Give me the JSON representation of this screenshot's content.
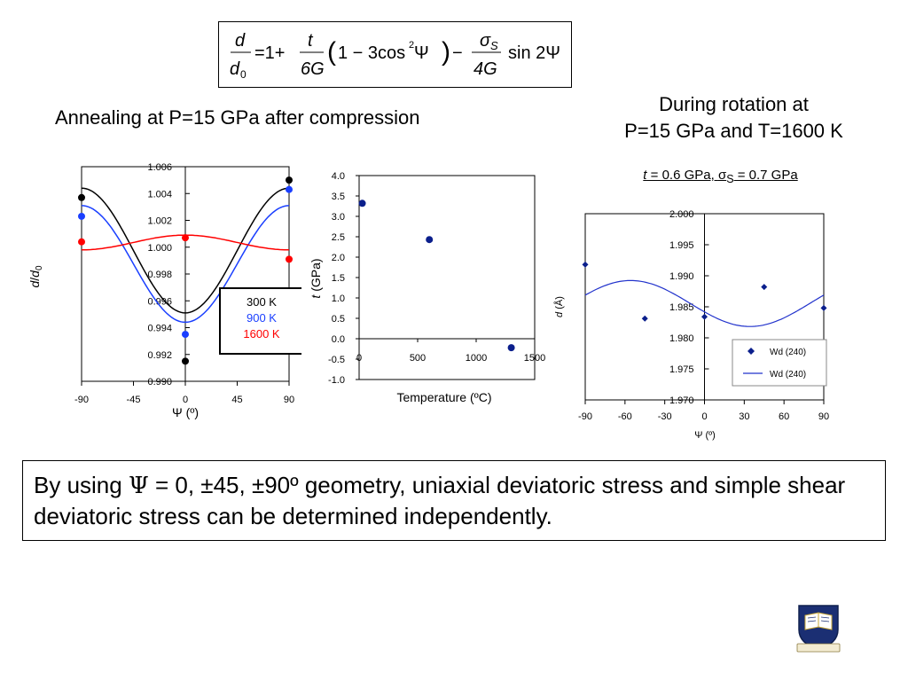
{
  "formula": {
    "lhs_num": "d",
    "lhs_den": "d",
    "lhs_den_sub": "0",
    "equals_one_plus": "=1+",
    "frac1_num": "t",
    "frac1_den": "6G",
    "paren_open": "(",
    "inner": "1 − 3cos",
    "inner_sup": "2",
    "inner_psi": " Ψ",
    "paren_close": ")",
    "minus": "−",
    "frac2_num": "σ",
    "frac2_num_sub": "S",
    "frac2_den": "4G",
    "trail": "sin 2Ψ"
  },
  "annealing_title": "Annealing at P=15 GPa after compression",
  "rotation_title_line1": "During rotation at",
  "rotation_title_line2": "P=15 GPa and T=1600 K",
  "rotation_params": {
    "t_symbol": "t",
    "t_rest": " = 0.6 GPa, ",
    "sigma": "σ",
    "sigma_sub": "S",
    "sigma_rest": " = 0.7 GPa"
  },
  "note": {
    "text_part1": "By using ",
    "psi": "Ψ",
    "text_part2": " = 0, ±45, ±90º geometry, uniaxial deviatoric stress and simple shear deviatoric stress can be determined independently."
  },
  "chart_data": [
    {
      "type": "line",
      "xlabel": "Ψ (º)",
      "ylabel": "d/d0",
      "x_ticks": [
        -90,
        -45,
        0,
        45,
        90
      ],
      "y_ticks": [
        0.99,
        0.992,
        0.994,
        0.996,
        0.998,
        1.0,
        1.002,
        1.004,
        1.006
      ],
      "y_tick_labels": [
        "0.990",
        "0.992",
        "0.994",
        "0.996",
        "0.998",
        "1.000",
        "1.002",
        "1.004",
        "1.006"
      ],
      "xlim": [
        -90,
        90
      ],
      "ylim": [
        0.99,
        1.006
      ],
      "legend_position": "lower-right",
      "series": [
        {
          "name": "300 K",
          "color": "#000000",
          "curve_mid": 0.99975,
          "curve_amp": 0.00465,
          "points": [
            [
              -90,
              1.0037
            ],
            [
              0,
              0.9915
            ],
            [
              90,
              1.005
            ]
          ]
        },
        {
          "name": "900 K",
          "color": "#1a3fff",
          "curve_mid": 0.99875,
          "curve_amp": 0.00435,
          "points": [
            [
              -90,
              1.0023
            ],
            [
              0,
              0.9935
            ],
            [
              90,
              1.0043
            ]
          ]
        },
        {
          "name": "1600 K",
          "color": "#ff0000",
          "curve_mid": 1.00035,
          "curve_amp": -0.00055,
          "points": [
            [
              -90,
              1.0004
            ],
            [
              0,
              1.0007
            ],
            [
              90,
              0.9991
            ]
          ]
        }
      ]
    },
    {
      "type": "scatter",
      "xlabel": "Temperature (ºC)",
      "ylabel": "t (GPa)",
      "ylabel_italic": "t",
      "ylabel_rest": " (GPa)",
      "x_ticks": [
        0,
        500,
        1000,
        1500
      ],
      "y_ticks": [
        -1.0,
        -0.5,
        0.0,
        0.5,
        1.0,
        1.5,
        2.0,
        2.5,
        3.0,
        3.5,
        4.0
      ],
      "y_tick_labels": [
        "-1.0",
        "-0.5",
        "0.0",
        "0.5",
        "1.0",
        "1.5",
        "2.0",
        "2.5",
        "3.0",
        "3.5",
        "4.0"
      ],
      "xlim": [
        0,
        1500
      ],
      "ylim": [
        -1.0,
        4.0
      ],
      "color": "#0b1f8c",
      "points": [
        [
          27,
          3.32
        ],
        [
          600,
          2.43
        ],
        [
          1300,
          -0.22
        ]
      ]
    },
    {
      "type": "scatter",
      "xlabel": "Ψ (º)",
      "ylabel": "d (Å)",
      "x_ticks": [
        -90,
        -60,
        -30,
        0,
        30,
        60,
        90
      ],
      "y_ticks": [
        1.97,
        1.975,
        1.98,
        1.985,
        1.99,
        1.995,
        2.0
      ],
      "y_tick_labels": [
        "1.970",
        "1.975",
        "1.980",
        "1.985",
        "1.990",
        "1.995",
        "2.000"
      ],
      "xlim": [
        -90,
        90
      ],
      "ylim": [
        1.97,
        2.0
      ],
      "legend_position": "lower-right",
      "series": [
        {
          "name": "Wd (240)",
          "kind": "points",
          "color": "#0b1f8c",
          "points": [
            [
              -90,
              1.9918
            ],
            [
              -45,
              1.9831
            ],
            [
              0,
              1.9834
            ],
            [
              45,
              1.9882
            ],
            [
              90,
              1.9848
            ]
          ]
        },
        {
          "name": "Wd (240)",
          "kind": "fit-line",
          "color": "#2233cc",
          "curve_mid": 1.98553,
          "amp_uniaxial": -0.00135,
          "amp_shear": -0.00345
        }
      ]
    }
  ]
}
